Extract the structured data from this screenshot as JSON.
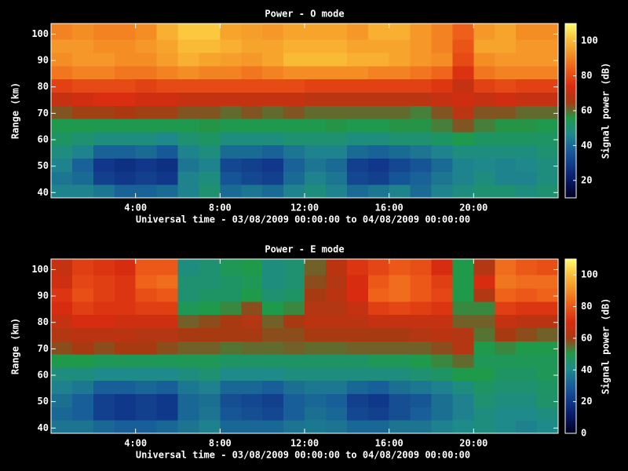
{
  "chart_data": [
    {
      "type": "heatmap",
      "title": "Power - O mode",
      "xlabel": "Universal time - 03/08/2009 00:00:00 to 04/08/2009 00:00:00",
      "ylabel": "Range (km)",
      "colorbar_label": "Signal power (dB)",
      "x": [
        0,
        1,
        2,
        3,
        4,
        5,
        6,
        7,
        8,
        9,
        10,
        11,
        12,
        13,
        14,
        15,
        16,
        17,
        18,
        19,
        20,
        21,
        22,
        23,
        24
      ],
      "y": [
        38,
        43,
        48,
        53,
        58,
        63,
        68,
        73,
        78,
        83,
        88,
        93,
        98,
        104
      ],
      "z": [
        [
          45,
          45,
          42,
          38,
          38,
          40,
          45,
          50,
          40,
          42,
          40,
          45,
          48,
          45,
          40,
          42,
          45,
          40,
          45,
          48,
          50,
          50,
          48,
          50
        ],
        [
          42,
          40,
          30,
          28,
          30,
          28,
          45,
          48,
          35,
          32,
          30,
          40,
          45,
          42,
          32,
          30,
          35,
          38,
          42,
          45,
          48,
          45,
          45,
          48
        ],
        [
          45,
          38,
          28,
          26,
          28,
          26,
          42,
          45,
          32,
          30,
          28,
          38,
          42,
          40,
          30,
          28,
          32,
          35,
          40,
          45,
          46,
          45,
          46,
          48
        ],
        [
          48,
          45,
          38,
          38,
          40,
          36,
          45,
          48,
          40,
          40,
          38,
          42,
          45,
          45,
          40,
          38,
          40,
          42,
          45,
          48,
          48,
          48,
          48,
          50
        ],
        [
          52,
          50,
          48,
          48,
          48,
          46,
          50,
          52,
          48,
          48,
          48,
          50,
          50,
          50,
          48,
          48,
          50,
          50,
          52,
          55,
          52,
          52,
          52,
          52
        ],
        [
          55,
          55,
          55,
          55,
          55,
          55,
          55,
          56,
          55,
          55,
          55,
          55,
          55,
          56,
          55,
          55,
          56,
          56,
          58,
          62,
          58,
          56,
          56,
          55
        ],
        [
          62,
          64,
          64,
          65,
          64,
          64,
          62,
          62,
          60,
          62,
          60,
          62,
          60,
          60,
          60,
          60,
          60,
          58,
          62,
          68,
          62,
          62,
          60,
          60
        ],
        [
          70,
          72,
          74,
          74,
          72,
          72,
          70,
          70,
          70,
          70,
          70,
          70,
          68,
          68,
          68,
          68,
          68,
          68,
          70,
          72,
          70,
          72,
          70,
          70
        ],
        [
          78,
          80,
          80,
          80,
          78,
          80,
          80,
          80,
          80,
          80,
          80,
          80,
          78,
          78,
          78,
          78,
          78,
          78,
          76,
          70,
          78,
          80,
          78,
          78
        ],
        [
          88,
          90,
          90,
          88,
          88,
          90,
          92,
          90,
          90,
          88,
          90,
          92,
          92,
          92,
          92,
          90,
          90,
          88,
          85,
          75,
          88,
          90,
          90,
          90
        ],
        [
          92,
          94,
          94,
          92,
          92,
          95,
          98,
          96,
          95,
          94,
          96,
          100,
          100,
          100,
          98,
          98,
          96,
          94,
          92,
          80,
          92,
          94,
          94,
          94
        ],
        [
          94,
          94,
          92,
          92,
          94,
          96,
          100,
          100,
          98,
          96,
          96,
          98,
          98,
          98,
          96,
          96,
          96,
          94,
          90,
          82,
          96,
          96,
          94,
          94
        ],
        [
          90,
          92,
          90,
          90,
          92,
          98,
          102,
          102,
          96,
          95,
          94,
          96,
          96,
          96,
          94,
          98,
          98,
          94,
          90,
          84,
          94,
          96,
          92,
          92
        ]
      ],
      "xlim": [
        0,
        24
      ],
      "ylim": [
        38,
        104
      ],
      "xticks": [
        {
          "value": 4,
          "label": "4:00"
        },
        {
          "value": 8,
          "label": "8:00"
        },
        {
          "value": 12,
          "label": "12:00"
        },
        {
          "value": 16,
          "label": "16:00"
        },
        {
          "value": 20,
          "label": "20:00"
        }
      ],
      "yticks": [
        40,
        50,
        60,
        70,
        80,
        90,
        100
      ],
      "clim": [
        10,
        110
      ],
      "cticks": [
        20,
        40,
        60,
        80,
        100
      ],
      "colormap": [
        "#000020",
        "#081660",
        "#10388a",
        "#185e98",
        "#1f8a8a",
        "#1e9a4a",
        "#a83a12",
        "#d82c10",
        "#ec5818",
        "#f48c24",
        "#fac038",
        "#ffff70"
      ]
    },
    {
      "type": "heatmap",
      "title": "Power - E mode",
      "xlabel": "Universal time - 03/08/2009 00:00:00 to 04/08/2009 00:00:00",
      "ylabel": "Range (km)",
      "colorbar_label": "Signal power (dB)",
      "x": [
        0,
        1,
        2,
        3,
        4,
        5,
        6,
        7,
        8,
        9,
        10,
        11,
        12,
        13,
        14,
        15,
        16,
        17,
        18,
        19,
        20,
        21,
        22,
        23,
        24
      ],
      "y": [
        38,
        43,
        48,
        53,
        58,
        63,
        68,
        73,
        78,
        83,
        88,
        93,
        98,
        104
      ],
      "z": [
        [
          35,
          35,
          32,
          30,
          30,
          32,
          35,
          38,
          32,
          32,
          32,
          35,
          36,
          35,
          32,
          32,
          35,
          35,
          38,
          40,
          42,
          40,
          38,
          40
        ],
        [
          32,
          30,
          22,
          20,
          22,
          20,
          32,
          35,
          28,
          26,
          24,
          30,
          34,
          32,
          24,
          22,
          26,
          30,
          34,
          38,
          42,
          40,
          40,
          42
        ],
        [
          34,
          30,
          22,
          20,
          22,
          20,
          32,
          34,
          26,
          24,
          22,
          30,
          32,
          30,
          22,
          20,
          26,
          28,
          34,
          38,
          44,
          42,
          42,
          45
        ],
        [
          38,
          36,
          30,
          30,
          32,
          30,
          36,
          38,
          32,
          32,
          30,
          34,
          36,
          36,
          32,
          30,
          34,
          36,
          38,
          42,
          46,
          44,
          44,
          46
        ],
        [
          42,
          42,
          40,
          40,
          40,
          40,
          42,
          44,
          40,
          40,
          40,
          42,
          42,
          42,
          42,
          42,
          42,
          44,
          46,
          50,
          50,
          46,
          46,
          48
        ],
        [
          50,
          50,
          48,
          48,
          48,
          48,
          48,
          48,
          46,
          46,
          46,
          46,
          46,
          46,
          46,
          48,
          48,
          50,
          52,
          55,
          48,
          48,
          48,
          48
        ],
        [
          58,
          60,
          58,
          60,
          60,
          58,
          56,
          56,
          54,
          55,
          55,
          56,
          55,
          55,
          56,
          56,
          56,
          56,
          58,
          62,
          50,
          52,
          50,
          50
        ],
        [
          62,
          64,
          64,
          64,
          62,
          62,
          60,
          60,
          60,
          60,
          58,
          58,
          60,
          60,
          60,
          60,
          60,
          62,
          64,
          62,
          54,
          60,
          58,
          56
        ],
        [
          66,
          70,
          70,
          68,
          68,
          68,
          56,
          58,
          60,
          62,
          56,
          60,
          64,
          64,
          64,
          66,
          66,
          66,
          66,
          56,
          56,
          66,
          64,
          64
        ],
        [
          70,
          74,
          72,
          72,
          74,
          74,
          48,
          50,
          52,
          58,
          50,
          52,
          62,
          62,
          66,
          74,
          76,
          74,
          72,
          52,
          52,
          74,
          72,
          72
        ],
        [
          72,
          78,
          74,
          72,
          78,
          80,
          44,
          46,
          46,
          50,
          44,
          46,
          60,
          64,
          70,
          82,
          84,
          80,
          76,
          50,
          62,
          82,
          80,
          82
        ],
        [
          68,
          76,
          74,
          72,
          82,
          84,
          44,
          44,
          46,
          48,
          42,
          44,
          58,
          62,
          70,
          80,
          84,
          80,
          74,
          50,
          70,
          86,
          84,
          84
        ],
        [
          66,
          74,
          72,
          70,
          80,
          80,
          42,
          44,
          48,
          50,
          42,
          44,
          56,
          64,
          72,
          76,
          80,
          78,
          70,
          50,
          62,
          84,
          80,
          78
        ]
      ],
      "xlim": [
        0,
        24
      ],
      "ylim": [
        38,
        104
      ],
      "xticks": [
        {
          "value": 4,
          "label": "4:00"
        },
        {
          "value": 8,
          "label": "8:00"
        },
        {
          "value": 12,
          "label": "12:00"
        },
        {
          "value": 16,
          "label": "16:00"
        },
        {
          "value": 20,
          "label": "20:00"
        }
      ],
      "yticks": [
        40,
        50,
        60,
        70,
        80,
        90,
        100
      ],
      "clim": [
        0,
        110
      ],
      "cticks": [
        0,
        20,
        40,
        60,
        80,
        100
      ],
      "colormap": [
        "#000020",
        "#081660",
        "#10388a",
        "#185e98",
        "#1f8a8a",
        "#1e9a4a",
        "#a83a12",
        "#d82c10",
        "#ec5818",
        "#f48c24",
        "#fac038",
        "#ffff70"
      ]
    }
  ]
}
